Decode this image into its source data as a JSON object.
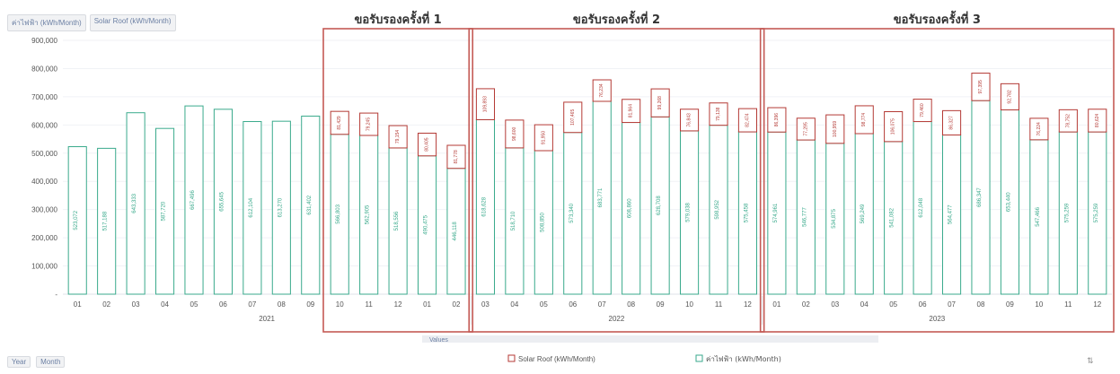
{
  "ui": {
    "field_buttons": [
      "ค่าไฟฟ้า (kWh/Month)",
      "Solar Roof (kWh/Month)"
    ],
    "bottom_buttons": [
      "Year",
      "Month"
    ],
    "values_label": "Values"
  },
  "chart_data": {
    "type": "bar",
    "stacked": true,
    "colors": {
      "grid": "#dfe3ea",
      "grid_light": "#f0f2f6",
      "electricity": "#3aaa8c",
      "solar": "#b43a35",
      "frame": "#c45a55",
      "text": "#555555",
      "header_text": "#333333"
    },
    "ylim": [
      0,
      900000
    ],
    "yticks": [
      "900,000",
      "800,000",
      "700,000",
      "600,000",
      "500,000",
      "400,000",
      "300,000",
      "200,000",
      "100,000",
      "-"
    ],
    "years": [
      {
        "label": "2021",
        "months": [
          "01",
          "02",
          "03",
          "04",
          "05",
          "06",
          "07",
          "08",
          "09",
          "10",
          "11",
          "12",
          "01",
          "02"
        ]
      },
      {
        "label": "2022",
        "months": [
          "03",
          "04",
          "05",
          "06",
          "07",
          "08",
          "09",
          "10",
          "11",
          "12"
        ]
      },
      {
        "label": "2023",
        "months": [
          "01",
          "02",
          "03",
          "04",
          "05",
          "06",
          "07",
          "08",
          "09",
          "10",
          "11",
          "12"
        ]
      }
    ],
    "series": [
      {
        "name": "ค่าไฟฟ้า (kWh/Month)",
        "values": [
          523072,
          517188,
          643333,
          587720,
          667496,
          655645,
          612104,
          613270,
          631402,
          566803,
          562905,
          518556,
          490475,
          446118,
          618628,
          518710,
          508850,
          573340,
          683771,
          608860,
          628708,
          579038,
          598952,
          575458,
          574961,
          546777,
          534875,
          569249,
          541082,
          612048,
          564477,
          686347,
          653440,
          547466,
          575259,
          575259
        ]
      },
      {
        "name": "Solar Roof (kWh/Month)",
        "values": [
          0,
          0,
          0,
          0,
          0,
          0,
          0,
          0,
          0,
          81429,
          79245,
          79154,
          80405,
          81778,
          109893,
          98600,
          91950,
          107465,
          76234,
          81964,
          99268,
          76843,
          79138,
          82474,
          86396,
          77295,
          100959,
          98774,
          106075,
          79460,
          86327,
          97395,
          92782,
          76224,
          78752,
          80624
        ]
      }
    ],
    "data_labels_bar": [
      "523,072",
      "517,188",
      "643,333",
      "587,720",
      "667,496",
      "655,645",
      "612,104",
      "613,270",
      "631,402",
      "566,803",
      "562,905",
      "518,556",
      "490,475",
      "446,118",
      "618,628",
      "518,710",
      "508,850",
      "573,340",
      "683,771",
      "608,860",
      "628,708",
      "579,038",
      "598,952",
      "575,458",
      "574,961",
      "546,777",
      "534,875",
      "569,249",
      "541,082",
      "612,048",
      "564,477",
      "686,347",
      "653,440",
      "547,466",
      "575,259",
      "575,259"
    ],
    "data_labels_solar": [
      "",
      "",
      "",
      "",
      "",
      "",
      "",
      "",
      "",
      "81,429",
      "79,245",
      "79,154",
      "80,405",
      "81,778",
      "109,893",
      "98,600",
      "91,950",
      "107,465",
      "76,234",
      "81,964",
      "99,268",
      "76,843",
      "79,138",
      "82,474",
      "86,396",
      "77,295",
      "100,959",
      "98,774",
      "106,075",
      "79,460",
      "86,327",
      "97,395",
      "92,782",
      "76,224",
      "78,752",
      "80,624"
    ],
    "annotations": [
      {
        "label": "ขอรับรองครั้งที่ 1",
        "from": 9,
        "to": 13
      },
      {
        "label": "ขอรับรองครั้งที่ 2",
        "from": 14,
        "to": 23
      },
      {
        "label": "ขอรับรองครั้งที่ 3",
        "from": 24,
        "to": 35
      }
    ],
    "legend": {
      "position": "bottom",
      "items": [
        "Solar Roof (kWh/Month)",
        "ค่าไฟฟ้า (kWh/Month)"
      ]
    }
  }
}
